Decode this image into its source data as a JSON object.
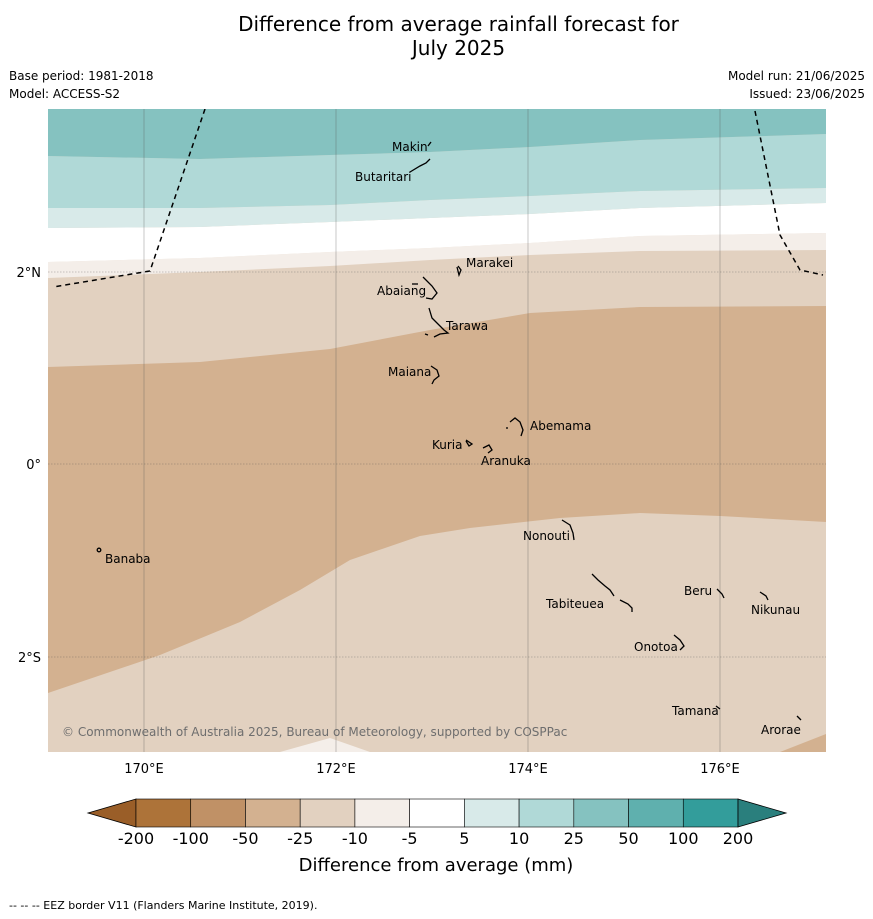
{
  "title_line1": "Difference from average rainfall forecast for",
  "title_line2": "July 2025",
  "base_period": "Base period: 1981-2018",
  "model": "Model: ACCESS-S2",
  "model_run": "Model run: 21/06/2025",
  "issued": "Issued: 23/06/2025",
  "copyright": "© Commonwealth of Australia 2025, Bureau of Meteorology, supported by COSPPac",
  "footer_legend": "--  --  -- EEZ border V11 (Flanders Marine Institute, 2019).",
  "axes": {
    "lat_ticks": [
      "2°N",
      "0°",
      "2°S"
    ],
    "lon_ticks": [
      "170°E",
      "172°E",
      "174°E",
      "176°E"
    ]
  },
  "places": [
    {
      "name": "Makin"
    },
    {
      "name": "Butaritari"
    },
    {
      "name": "Marakei"
    },
    {
      "name": "Abaiang"
    },
    {
      "name": "Tarawa"
    },
    {
      "name": "Maiana"
    },
    {
      "name": "Abemama"
    },
    {
      "name": "Kuria"
    },
    {
      "name": "Aranuka"
    },
    {
      "name": "Nonouti"
    },
    {
      "name": "Banaba"
    },
    {
      "name": "Beru"
    },
    {
      "name": "Tabiteuea"
    },
    {
      "name": "Nikunau"
    },
    {
      "name": "Onotoa"
    },
    {
      "name": "Tamana"
    },
    {
      "name": "Arorae"
    }
  ],
  "colorbar": {
    "label": "Difference from average (mm)",
    "ticks": [
      "-200",
      "-100",
      "-50",
      "-25",
      "-10",
      "-5",
      "5",
      "10",
      "25",
      "50",
      "100",
      "200"
    ],
    "colors": [
      "#ad7339",
      "#c09166",
      "#d3b190",
      "#e2d1c0",
      "#f4eee9",
      "#ffffff",
      "#d8eae9",
      "#b0d9d7",
      "#85c2c0",
      "#5fb0ae",
      "#339d9b"
    ],
    "under_color": "#9a5e28",
    "over_color": "#2a7f7d"
  }
}
